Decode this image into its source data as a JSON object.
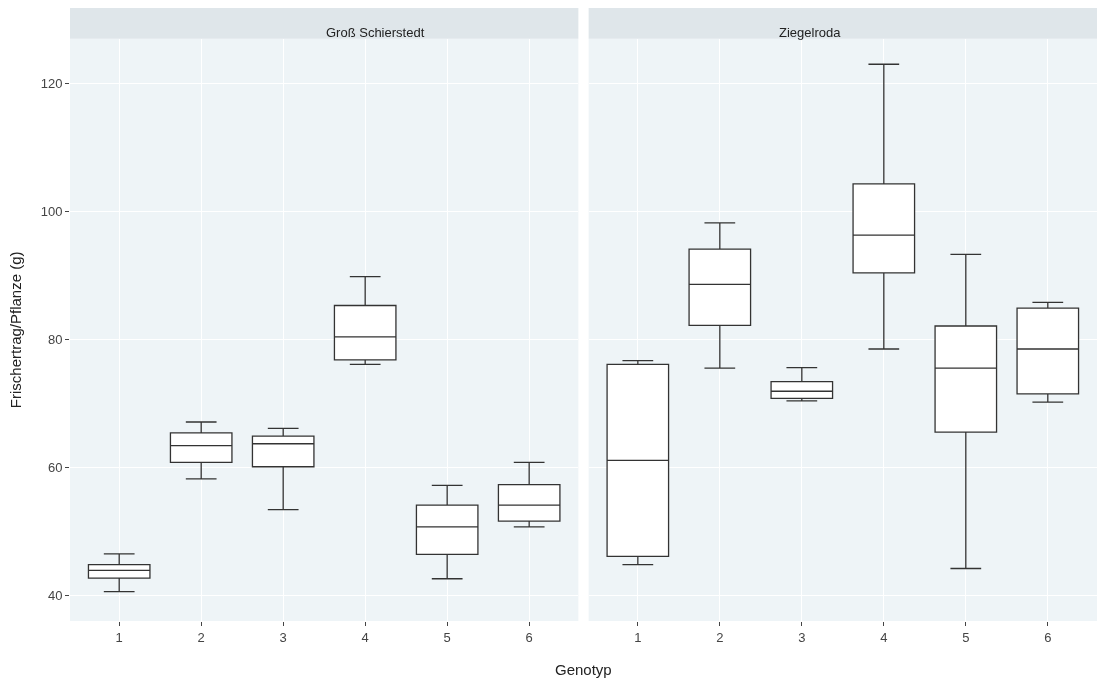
{
  "chart_data": [
    {
      "type": "box",
      "title": "Groß Schierstedt",
      "xlabel": "Genotyp",
      "ylabel": "Frischertrag/Pflanze (g)",
      "categories": [
        "1",
        "2",
        "3",
        "4",
        "5",
        "6"
      ],
      "ylim": [
        36,
        127
      ],
      "yticks": [
        40,
        60,
        80,
        100,
        120
      ],
      "grid": true,
      "boxes": [
        {
          "low": 40.6,
          "q1": 42.7,
          "median": 43.9,
          "q3": 44.8,
          "high": 46.5
        },
        {
          "low": 58.2,
          "q1": 60.8,
          "median": 63.4,
          "q3": 65.4,
          "high": 67.1
        },
        {
          "low": 53.4,
          "q1": 60.1,
          "median": 63.7,
          "q3": 64.9,
          "high": 66.1
        },
        {
          "low": 76.1,
          "q1": 76.8,
          "median": 80.4,
          "q3": 85.3,
          "high": 89.8
        },
        {
          "low": 42.6,
          "q1": 46.4,
          "median": 50.7,
          "q3": 54.1,
          "high": 57.2
        },
        {
          "low": 50.7,
          "q1": 51.6,
          "median": 54.1,
          "q3": 57.3,
          "high": 60.8
        }
      ]
    },
    {
      "type": "box",
      "title": "Ziegelroda",
      "categories": [
        "1",
        "2",
        "3",
        "4",
        "5",
        "6"
      ],
      "ylim": [
        36,
        127
      ],
      "yticks": [
        40,
        60,
        80,
        100,
        120
      ],
      "grid": true,
      "tick_labels": "x",
      "boxes": [
        {
          "low": 44.8,
          "q1": 46.1,
          "median": 61.1,
          "q3": 76.1,
          "high": 76.7
        },
        {
          "low": 75.5,
          "q1": 82.2,
          "median": 88.6,
          "q3": 94.1,
          "high": 98.2
        },
        {
          "low": 70.4,
          "q1": 70.8,
          "median": 71.9,
          "q3": 73.4,
          "high": 75.6
        },
        {
          "low": 78.5,
          "q1": 90.4,
          "median": 96.3,
          "q3": 104.3,
          "high": 123.0
        },
        {
          "low": 44.2,
          "q1": 65.5,
          "median": 75.5,
          "q3": 82.1,
          "high": 93.3
        },
        {
          "low": 70.2,
          "q1": 71.5,
          "median": 78.5,
          "q3": 84.9,
          "high": 85.8
        }
      ]
    }
  ]
}
